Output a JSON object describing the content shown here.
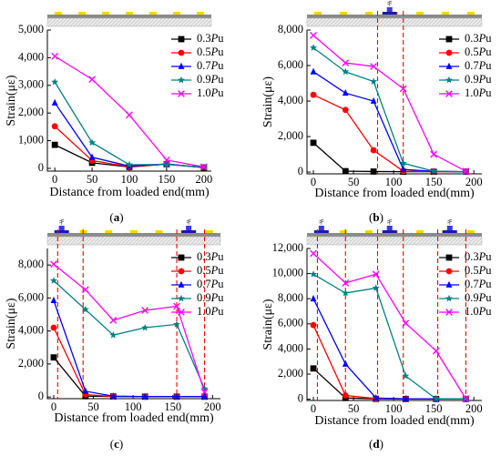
{
  "chart_data": [
    {
      "panel_label": "(a)",
      "type": "line",
      "xlabel": "Distance from loaded end(mm)",
      "ylabel": "Strain(με)",
      "xlim": [
        -10,
        210
      ],
      "ylim": [
        -100,
        5000
      ],
      "xticks": [
        0,
        50,
        100,
        150,
        200
      ],
      "yticks": [
        0,
        1000,
        2000,
        3000,
        4000,
        5000
      ],
      "ytick_labels": [
        "0",
        "1,000",
        "2,000",
        "3,000",
        "4,000",
        "5,000"
      ],
      "dashed_lines_x": [],
      "legend_position": "top-right",
      "series": [
        {
          "name": "0.3Pu",
          "color": "#000000",
          "marker": "square",
          "x": [
            0,
            50,
            100,
            150,
            200
          ],
          "values": [
            850,
            200,
            50,
            150,
            30
          ]
        },
        {
          "name": "0.5Pu",
          "color": "#ff0000",
          "marker": "circle",
          "x": [
            0,
            50,
            100,
            150,
            200
          ],
          "values": [
            1520,
            280,
            60,
            150,
            30
          ]
        },
        {
          "name": "0.7Pu",
          "color": "#0000ff",
          "marker": "triangle",
          "x": [
            0,
            50,
            100,
            150,
            200
          ],
          "values": [
            2370,
            400,
            80,
            160,
            30
          ]
        },
        {
          "name": "0.9Pu",
          "color": "#008080",
          "marker": "star",
          "x": [
            0,
            50,
            100,
            150,
            200
          ],
          "values": [
            3120,
            930,
            130,
            140,
            40
          ]
        },
        {
          "name": "1.0Pu",
          "color": "#ff00ff",
          "marker": "x",
          "x": [
            0,
            50,
            100,
            150,
            200
          ],
          "values": [
            4050,
            3220,
            1930,
            300,
            50
          ]
        }
      ]
    },
    {
      "panel_label": "(b)",
      "type": "line",
      "xlabel": "Distance from loaded end(mm)",
      "ylabel": "Strain(με)",
      "xlim": [
        -8,
        210
      ],
      "ylim": [
        -100,
        8000
      ],
      "xticks": [
        0,
        50,
        100,
        150,
        200
      ],
      "yticks": [
        0,
        2000,
        4000,
        6000,
        8000
      ],
      "ytick_labels": [
        "0",
        "2,000",
        "4,000",
        "6,000",
        "8,000"
      ],
      "dashed_lines_x": [
        80,
        112
      ],
      "legend_position": "top-right",
      "series": [
        {
          "name": "0.3Pu",
          "color": "#000000",
          "marker": "square",
          "x": [
            0,
            40,
            75,
            112,
            150,
            190
          ],
          "values": [
            1650,
            50,
            30,
            20,
            20,
            20
          ]
        },
        {
          "name": "0.5Pu",
          "color": "#ff0000",
          "marker": "circle",
          "x": [
            0,
            40,
            75,
            112,
            150,
            190
          ],
          "values": [
            4350,
            3500,
            1230,
            50,
            30,
            20
          ]
        },
        {
          "name": "0.7Pu",
          "color": "#0000ff",
          "marker": "triangle",
          "x": [
            0,
            40,
            75,
            112,
            150,
            190
          ],
          "values": [
            5650,
            4450,
            4000,
            150,
            40,
            20
          ]
        },
        {
          "name": "0.9Pu",
          "color": "#008080",
          "marker": "star",
          "x": [
            0,
            40,
            75,
            112,
            150,
            190
          ],
          "values": [
            7000,
            5650,
            5100,
            500,
            50,
            20
          ]
        },
        {
          "name": "1.0Pu",
          "color": "#ff00ff",
          "marker": "x",
          "x": [
            0,
            40,
            75,
            112,
            150,
            190
          ],
          "values": [
            7700,
            6150,
            5950,
            4700,
            1000,
            50
          ]
        }
      ]
    },
    {
      "panel_label": "(c)",
      "type": "line",
      "xlabel": "Distance from loaded end(mm)",
      "ylabel": "Strain(με)",
      "xlim": [
        -8,
        210
      ],
      "ylim": [
        -100,
        9000
      ],
      "xticks": [
        0,
        50,
        100,
        150,
        200
      ],
      "yticks": [
        0,
        2000,
        4000,
        6000,
        8000
      ],
      "ytick_labels": [
        "0",
        "2,000",
        "4,000",
        "6,000",
        "8,000"
      ],
      "dashed_lines_x": [
        5,
        37,
        155,
        190
      ],
      "legend_position": "top-right",
      "series": [
        {
          "name": "0.3Pu",
          "color": "#000000",
          "marker": "square",
          "x": [
            0,
            40,
            75,
            115,
            155,
            190
          ],
          "values": [
            2400,
            50,
            30,
            20,
            20,
            20
          ]
        },
        {
          "name": "0.5Pu",
          "color": "#ff0000",
          "marker": "circle",
          "x": [
            0,
            40,
            75,
            115,
            155,
            190
          ],
          "values": [
            4200,
            150,
            30,
            20,
            20,
            20
          ]
        },
        {
          "name": "0.7Pu",
          "color": "#0000ff",
          "marker": "triangle",
          "x": [
            0,
            40,
            75,
            115,
            155,
            190
          ],
          "values": [
            5850,
            350,
            50,
            30,
            30,
            30
          ]
        },
        {
          "name": "0.9Pu",
          "color": "#008080",
          "marker": "star",
          "x": [
            0,
            40,
            75,
            115,
            155,
            190
          ],
          "values": [
            7050,
            5300,
            3750,
            4200,
            4400,
            500
          ]
        },
        {
          "name": "1.0Pu",
          "color": "#ff00ff",
          "marker": "x",
          "x": [
            0,
            40,
            75,
            115,
            155,
            190
          ],
          "values": [
            8050,
            6500,
            4650,
            5250,
            5500,
            300
          ]
        }
      ]
    },
    {
      "panel_label": "(d)",
      "type": "line",
      "xlabel": "Distance from loaded end(mm)",
      "ylabel": "Strain(με)",
      "xlim": [
        -8,
        210
      ],
      "ylim": [
        -100,
        12000
      ],
      "xticks": [
        0,
        50,
        100,
        150,
        200
      ],
      "yticks": [
        0,
        2000,
        4000,
        6000,
        8000,
        10000,
        12000
      ],
      "ytick_labels": [
        "0",
        "2,000",
        "4,000",
        "6,000",
        "8,000",
        "10,000",
        "12,000"
      ],
      "dashed_lines_x": [
        5,
        40,
        80,
        112,
        155,
        190
      ],
      "legend_position": "top-right",
      "series": [
        {
          "name": "0.3Pu",
          "color": "#000000",
          "marker": "square",
          "x": [
            0,
            40,
            78,
            115,
            153,
            190
          ],
          "values": [
            2450,
            100,
            30,
            20,
            20,
            20
          ]
        },
        {
          "name": "0.5Pu",
          "color": "#ff0000",
          "marker": "circle",
          "x": [
            0,
            40,
            78,
            115,
            153,
            190
          ],
          "values": [
            5900,
            300,
            50,
            20,
            20,
            20
          ]
        },
        {
          "name": "0.7Pu",
          "color": "#0000ff",
          "marker": "triangle",
          "x": [
            0,
            40,
            78,
            115,
            153,
            190
          ],
          "values": [
            8000,
            2800,
            100,
            30,
            20,
            20
          ]
        },
        {
          "name": "0.9Pu",
          "color": "#008080",
          "marker": "star",
          "x": [
            0,
            40,
            78,
            115,
            153,
            190
          ],
          "values": [
            9950,
            8450,
            8850,
            1850,
            30,
            20
          ]
        },
        {
          "name": "1.0Pu",
          "color": "#ff00ff",
          "marker": "x",
          "x": [
            0,
            40,
            78,
            115,
            153,
            190
          ],
          "values": [
            11600,
            9250,
            9950,
            6050,
            3850,
            50
          ]
        }
      ]
    }
  ]
}
